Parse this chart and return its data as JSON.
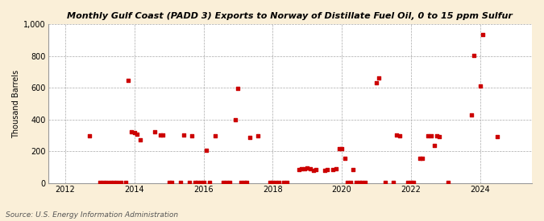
{
  "title": "Monthly Gulf Coast (PADD 3) Exports to Norway of Distillate Fuel Oil, 0 to 15 ppm Sulfur",
  "ylabel": "Thousand Barrels",
  "source": "Source: U.S. Energy Information Administration",
  "background_color": "#faefd8",
  "plot_background_color": "#ffffff",
  "point_color": "#cc0000",
  "marker_size": 6,
  "ylim": [
    0,
    1000
  ],
  "yticks": [
    0,
    200,
    400,
    600,
    800,
    1000
  ],
  "ytick_labels": [
    "0",
    "200",
    "400",
    "600",
    "800",
    "1,000"
  ],
  "xticks": [
    2012,
    2014,
    2016,
    2018,
    2020,
    2022,
    2024
  ],
  "xlim": [
    2011.5,
    2025.5
  ],
  "data": [
    [
      2012.7,
      300
    ],
    [
      2013.0,
      5
    ],
    [
      2013.1,
      5
    ],
    [
      2013.2,
      5
    ],
    [
      2013.3,
      5
    ],
    [
      2013.4,
      5
    ],
    [
      2013.5,
      5
    ],
    [
      2013.6,
      5
    ],
    [
      2013.75,
      5
    ],
    [
      2013.83,
      645
    ],
    [
      2013.92,
      325
    ],
    [
      2014.0,
      320
    ],
    [
      2014.08,
      310
    ],
    [
      2014.17,
      275
    ],
    [
      2014.58,
      325
    ],
    [
      2014.75,
      305
    ],
    [
      2014.83,
      305
    ],
    [
      2015.0,
      5
    ],
    [
      2015.08,
      5
    ],
    [
      2015.33,
      5
    ],
    [
      2015.42,
      305
    ],
    [
      2015.58,
      5
    ],
    [
      2015.67,
      300
    ],
    [
      2015.75,
      5
    ],
    [
      2015.83,
      5
    ],
    [
      2015.92,
      5
    ],
    [
      2016.0,
      5
    ],
    [
      2016.08,
      205
    ],
    [
      2016.17,
      5
    ],
    [
      2016.33,
      300
    ],
    [
      2016.58,
      5
    ],
    [
      2016.67,
      5
    ],
    [
      2016.75,
      5
    ],
    [
      2016.92,
      400
    ],
    [
      2017.0,
      595
    ],
    [
      2017.08,
      5
    ],
    [
      2017.17,
      5
    ],
    [
      2017.25,
      5
    ],
    [
      2017.33,
      290
    ],
    [
      2017.58,
      300
    ],
    [
      2017.92,
      5
    ],
    [
      2018.0,
      5
    ],
    [
      2018.08,
      5
    ],
    [
      2018.17,
      5
    ],
    [
      2018.33,
      5
    ],
    [
      2018.42,
      5
    ],
    [
      2018.75,
      85
    ],
    [
      2018.83,
      90
    ],
    [
      2018.92,
      90
    ],
    [
      2019.0,
      95
    ],
    [
      2019.08,
      90
    ],
    [
      2019.17,
      80
    ],
    [
      2019.25,
      85
    ],
    [
      2019.5,
      80
    ],
    [
      2019.58,
      85
    ],
    [
      2019.75,
      85
    ],
    [
      2019.83,
      90
    ],
    [
      2019.92,
      215
    ],
    [
      2020.0,
      215
    ],
    [
      2020.08,
      155
    ],
    [
      2020.17,
      5
    ],
    [
      2020.25,
      5
    ],
    [
      2020.33,
      85
    ],
    [
      2020.42,
      5
    ],
    [
      2020.5,
      5
    ],
    [
      2020.58,
      5
    ],
    [
      2020.67,
      5
    ],
    [
      2021.0,
      630
    ],
    [
      2021.08,
      660
    ],
    [
      2021.25,
      5
    ],
    [
      2021.5,
      5
    ],
    [
      2021.58,
      305
    ],
    [
      2021.67,
      300
    ],
    [
      2021.92,
      5
    ],
    [
      2022.0,
      5
    ],
    [
      2022.08,
      5
    ],
    [
      2022.25,
      155
    ],
    [
      2022.33,
      155
    ],
    [
      2022.5,
      300
    ],
    [
      2022.58,
      300
    ],
    [
      2022.67,
      235
    ],
    [
      2022.75,
      300
    ],
    [
      2022.83,
      295
    ],
    [
      2023.08,
      5
    ],
    [
      2023.75,
      430
    ],
    [
      2023.83,
      805
    ],
    [
      2024.0,
      610
    ],
    [
      2024.08,
      935
    ],
    [
      2024.5,
      295
    ]
  ]
}
